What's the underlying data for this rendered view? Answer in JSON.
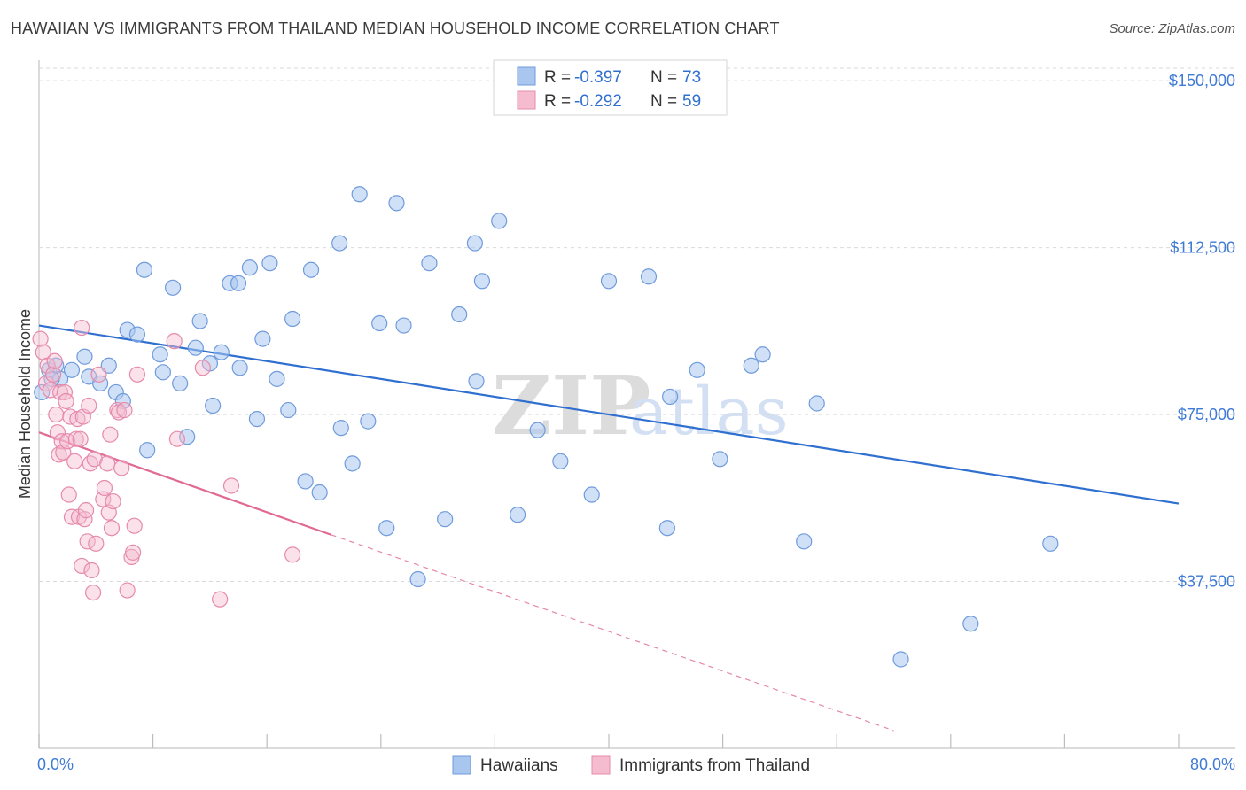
{
  "header": {
    "title": "HAWAIIAN VS IMMIGRANTS FROM THAILAND MEDIAN HOUSEHOLD INCOME CORRELATION CHART",
    "source": "Source: ZipAtlas.com"
  },
  "watermark": {
    "zip": "ZIP",
    "atlas": "atlas"
  },
  "legend": {
    "series": [
      {
        "r_label": "R =",
        "r_value": "-0.397",
        "n_label": "N =",
        "n_value": "73"
      },
      {
        "r_label": "R =",
        "r_value": "-0.292",
        "n_label": "N =",
        "n_value": "59"
      }
    ]
  },
  "bottom_legend": [
    "Hawaiians",
    "Immigrants from Thailand"
  ],
  "colors": {
    "blue_fill": "#a9c6ee",
    "blue_stroke": "#6f9bdc",
    "blue_line": "#2f6fd0",
    "pink_fill": "#f5bcd0",
    "pink_stroke": "#e68aab",
    "pink_line": "#e06a94",
    "grid": "#d9d9d9",
    "axis_text": "#3f7ad6"
  },
  "chart_data": {
    "type": "scatter",
    "title": "HAWAIIAN VS IMMIGRANTS FROM THAILAND MEDIAN HOUSEHOLD INCOME CORRELATION CHART",
    "xlabel": "",
    "ylabel": "Median Household Income",
    "xlim": [
      0,
      80
    ],
    "ylim": [
      0,
      155000
    ],
    "x_tick_labels": [
      "0.0%",
      "80.0%"
    ],
    "y_ticks": [
      37500,
      75000,
      112500,
      150000
    ],
    "y_tick_labels": [
      "$37,500",
      "$75,000",
      "$112,500",
      "$150,000"
    ],
    "series": [
      {
        "name": "Hawaiians",
        "R": -0.397,
        "N": 73,
        "trend": {
          "x0": 0,
          "y0": 95000,
          "x1": 80,
          "y1": 55000
        },
        "points": [
          [
            0.2,
            80000
          ],
          [
            0.7,
            85000
          ],
          [
            1.2,
            86000
          ],
          [
            1.5,
            83000
          ],
          [
            2.3,
            85000
          ],
          [
            3.2,
            88000
          ],
          [
            3.5,
            83500
          ],
          [
            4.3,
            82000
          ],
          [
            4.9,
            86000
          ],
          [
            5.4,
            80000
          ],
          [
            5.9,
            78000
          ],
          [
            6.2,
            94000
          ],
          [
            6.9,
            93000
          ],
          [
            7.4,
            107500
          ],
          [
            7.6,
            67000
          ],
          [
            8.5,
            88500
          ],
          [
            8.7,
            84500
          ],
          [
            9.4,
            103500
          ],
          [
            9.9,
            82000
          ],
          [
            10.4,
            70000
          ],
          [
            11.0,
            90000
          ],
          [
            11.3,
            96000
          ],
          [
            12.0,
            86500
          ],
          [
            12.2,
            77000
          ],
          [
            12.8,
            89000
          ],
          [
            13.4,
            104500
          ],
          [
            14.0,
            104500
          ],
          [
            14.1,
            85500
          ],
          [
            14.8,
            108000
          ],
          [
            15.3,
            74000
          ],
          [
            15.7,
            92000
          ],
          [
            16.2,
            109000
          ],
          [
            16.7,
            83000
          ],
          [
            17.5,
            76000
          ],
          [
            17.8,
            96500
          ],
          [
            18.7,
            60000
          ],
          [
            19.1,
            107500
          ],
          [
            19.7,
            57500
          ],
          [
            21.1,
            113500
          ],
          [
            21.2,
            72000
          ],
          [
            22.0,
            64000
          ],
          [
            22.5,
            124500
          ],
          [
            23.1,
            73500
          ],
          [
            23.9,
            95500
          ],
          [
            24.4,
            49500
          ],
          [
            25.1,
            122500
          ],
          [
            25.6,
            95000
          ],
          [
            26.6,
            38000
          ],
          [
            27.4,
            109000
          ],
          [
            28.5,
            51500
          ],
          [
            29.5,
            97500
          ],
          [
            30.6,
            113500
          ],
          [
            30.7,
            82500
          ],
          [
            31.1,
            105000
          ],
          [
            32.3,
            118500
          ],
          [
            33.6,
            52500
          ],
          [
            35.0,
            71500
          ],
          [
            36.6,
            64500
          ],
          [
            38.8,
            57000
          ],
          [
            40.0,
            105000
          ],
          [
            42.8,
            106000
          ],
          [
            44.1,
            49500
          ],
          [
            44.3,
            79000
          ],
          [
            46.2,
            85000
          ],
          [
            47.8,
            65000
          ],
          [
            50.0,
            86000
          ],
          [
            50.8,
            88500
          ],
          [
            53.7,
            46500
          ],
          [
            54.6,
            77500
          ],
          [
            60.5,
            20000
          ],
          [
            65.4,
            28000
          ],
          [
            71.0,
            46000
          ],
          [
            0.9,
            83000
          ]
        ]
      },
      {
        "name": "Immigrants from Thailand",
        "R": -0.292,
        "N": 59,
        "trend": {
          "x0": 0,
          "y0": 71000,
          "x1": 20.5,
          "y1": 48000
        },
        "trend_dashed": {
          "x0": 20.5,
          "y0": 48000,
          "x1": 60,
          "y1": 4000
        },
        "points": [
          [
            0.1,
            92000
          ],
          [
            0.3,
            89000
          ],
          [
            0.5,
            82000
          ],
          [
            0.6,
            86000
          ],
          [
            0.8,
            80500
          ],
          [
            1.0,
            84000
          ],
          [
            1.1,
            87000
          ],
          [
            1.2,
            75000
          ],
          [
            1.3,
            71000
          ],
          [
            1.4,
            66000
          ],
          [
            1.5,
            80000
          ],
          [
            1.6,
            69000
          ],
          [
            1.7,
            66500
          ],
          [
            1.8,
            80000
          ],
          [
            1.9,
            78000
          ],
          [
            2.0,
            69000
          ],
          [
            2.1,
            57000
          ],
          [
            2.2,
            74500
          ],
          [
            2.3,
            52000
          ],
          [
            2.5,
            64500
          ],
          [
            2.6,
            69500
          ],
          [
            2.7,
            74000
          ],
          [
            2.8,
            52000
          ],
          [
            2.9,
            69500
          ],
          [
            3.0,
            41000
          ],
          [
            3.1,
            74500
          ],
          [
            3.2,
            51500
          ],
          [
            3.3,
            53500
          ],
          [
            3.4,
            46500
          ],
          [
            3.5,
            77000
          ],
          [
            3.6,
            64000
          ],
          [
            3.7,
            40000
          ],
          [
            3.8,
            35000
          ],
          [
            3.9,
            65000
          ],
          [
            4.0,
            46000
          ],
          [
            4.2,
            84000
          ],
          [
            4.5,
            56000
          ],
          [
            4.6,
            58500
          ],
          [
            4.8,
            64000
          ],
          [
            4.9,
            53000
          ],
          [
            5.0,
            70500
          ],
          [
            5.1,
            49500
          ],
          [
            5.2,
            55500
          ],
          [
            5.5,
            76000
          ],
          [
            5.6,
            75500
          ],
          [
            5.8,
            63000
          ],
          [
            6.0,
            76000
          ],
          [
            6.2,
            35500
          ],
          [
            6.5,
            43000
          ],
          [
            6.6,
            44000
          ],
          [
            6.7,
            50000
          ],
          [
            6.9,
            84000
          ],
          [
            3.0,
            94500
          ],
          [
            9.5,
            91500
          ],
          [
            9.7,
            69500
          ],
          [
            11.5,
            85500
          ],
          [
            12.7,
            33500
          ],
          [
            13.5,
            59000
          ],
          [
            17.8,
            43500
          ]
        ]
      }
    ]
  }
}
